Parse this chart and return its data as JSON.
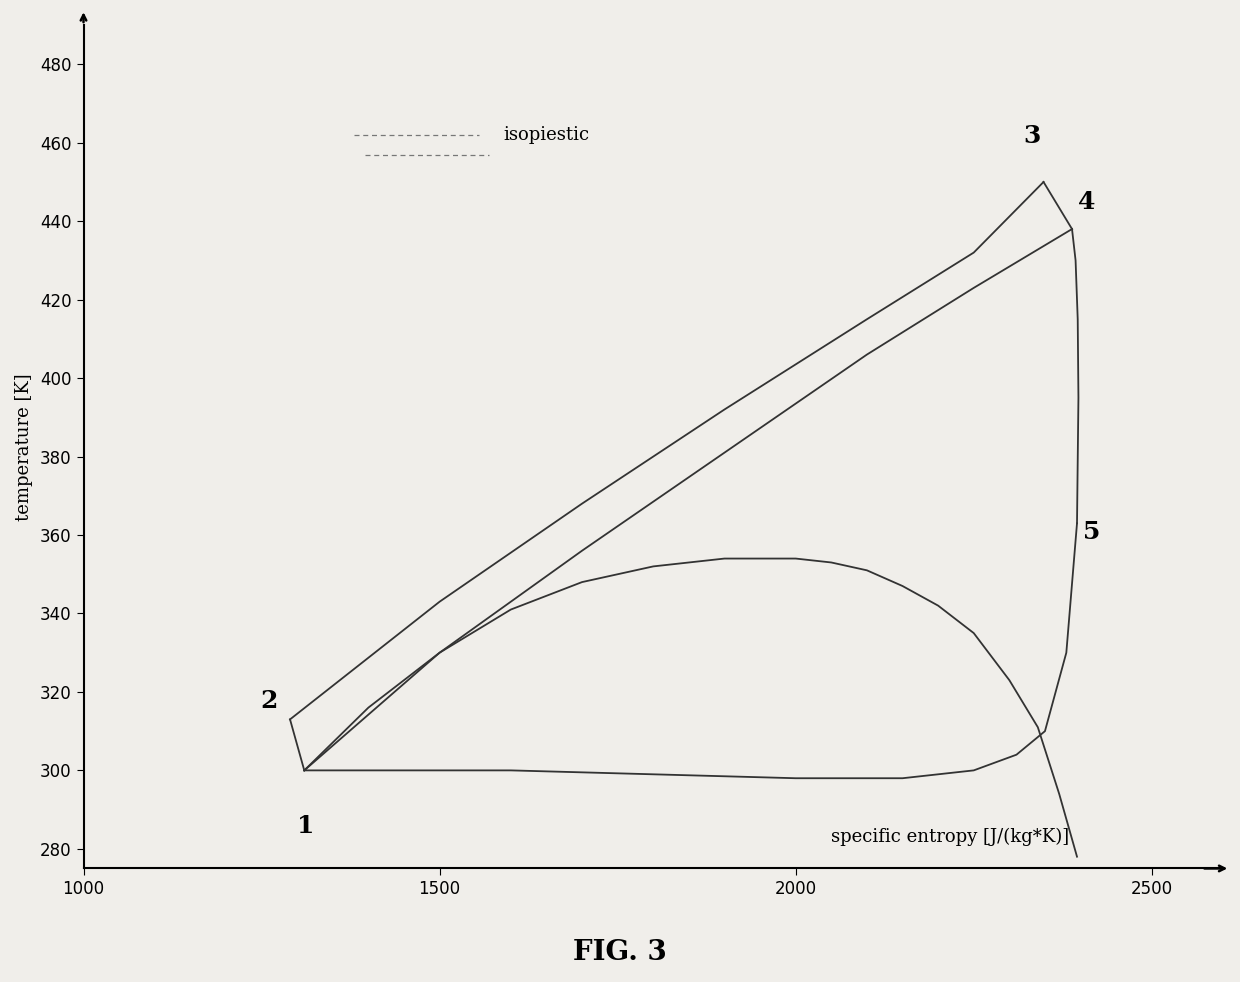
{
  "title": "FIG. 3",
  "xlabel": "specific entropy [J/(kg*K)]",
  "ylabel": "temperature [K]",
  "xlim": [
    1000,
    2600
  ],
  "ylim": [
    275,
    490
  ],
  "xticks": [
    1000,
    1500,
    2000,
    2500
  ],
  "yticks": [
    280,
    300,
    320,
    340,
    360,
    380,
    400,
    420,
    440,
    460,
    480
  ],
  "background_color": "#f0eeea",
  "line_color": "#333333",
  "point1": [
    1310,
    300
  ],
  "point2": [
    1290,
    313
  ],
  "point3": [
    2348,
    450
  ],
  "point4": [
    2388,
    438
  ],
  "point5": [
    2395,
    363
  ],
  "iso_upper_x": [
    1290,
    1500,
    1700,
    1900,
    2100,
    2250,
    2348
  ],
  "iso_upper_y": [
    313,
    343,
    368,
    392,
    415,
    432,
    450
  ],
  "iso_lower_x": [
    1310,
    1500,
    1700,
    1900,
    2100,
    2250,
    2388
  ],
  "iso_lower_y": [
    300,
    330,
    356,
    381,
    406,
    423,
    438
  ],
  "dome_x": [
    1310,
    1400,
    1500,
    1600,
    1700,
    1800,
    1900,
    2000,
    2050,
    2100,
    2150,
    2200,
    2250,
    2300,
    2340,
    2370,
    2395
  ],
  "dome_y": [
    300,
    316,
    330,
    341,
    348,
    352,
    354,
    354,
    353,
    351,
    347,
    342,
    335,
    323,
    311,
    294,
    278
  ],
  "line45_x": [
    2388,
    2393,
    2396,
    2397,
    2395
  ],
  "line45_y": [
    438,
    430,
    415,
    395,
    363
  ],
  "line51_x": [
    2395,
    2380,
    2350,
    2310,
    2250,
    2150,
    2000,
    1800,
    1600,
    1450,
    1310
  ],
  "line51_y": [
    363,
    330,
    310,
    304,
    300,
    298,
    298,
    299,
    300,
    300,
    300
  ],
  "legend_line1_x": [
    1380,
    1555
  ],
  "legend_line1_y": [
    462,
    462
  ],
  "legend_line2_x": [
    1395,
    1570
  ],
  "legend_line2_y": [
    457,
    457
  ]
}
